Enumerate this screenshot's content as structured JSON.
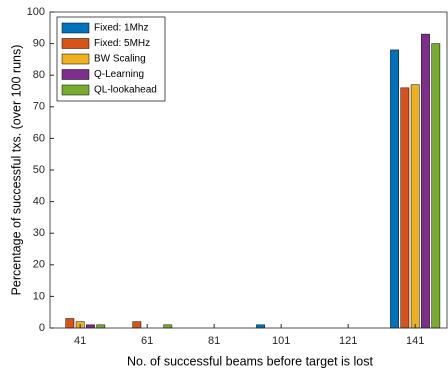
{
  "chart_data": {
    "type": "bar",
    "xlabel": "No. of successful beams before target is lost",
    "ylabel": "Percentage of successful txs. (over 100 runs)",
    "x": [
      41,
      61,
      81,
      101,
      121,
      141
    ],
    "xlim": [
      32,
      150.5
    ],
    "xticks": [
      41,
      61,
      81,
      101,
      121,
      141
    ],
    "ylim": [
      0,
      100
    ],
    "yticks": [
      0,
      10,
      20,
      30,
      40,
      50,
      60,
      70,
      80,
      90,
      100
    ],
    "legend": "upper left",
    "series": [
      {
        "name": "Fixed: 1Mhz",
        "color": "#0072BD",
        "values": [
          0,
          0,
          0,
          1,
          0,
          88
        ]
      },
      {
        "name": "Fixed: 5MHz",
        "color": "#D95319",
        "values": [
          3,
          2,
          0,
          0,
          0,
          76
        ]
      },
      {
        "name": "BW Scaling",
        "color": "#EDB120",
        "values": [
          2,
          0,
          0,
          0,
          0,
          77
        ]
      },
      {
        "name": "Q-Learning",
        "color": "#7E2F8E",
        "values": [
          1,
          0,
          0,
          0,
          0,
          93
        ]
      },
      {
        "name": "QL-lookahead",
        "color": "#77AC30",
        "values": [
          1,
          1,
          0,
          0,
          0,
          90
        ]
      }
    ]
  }
}
